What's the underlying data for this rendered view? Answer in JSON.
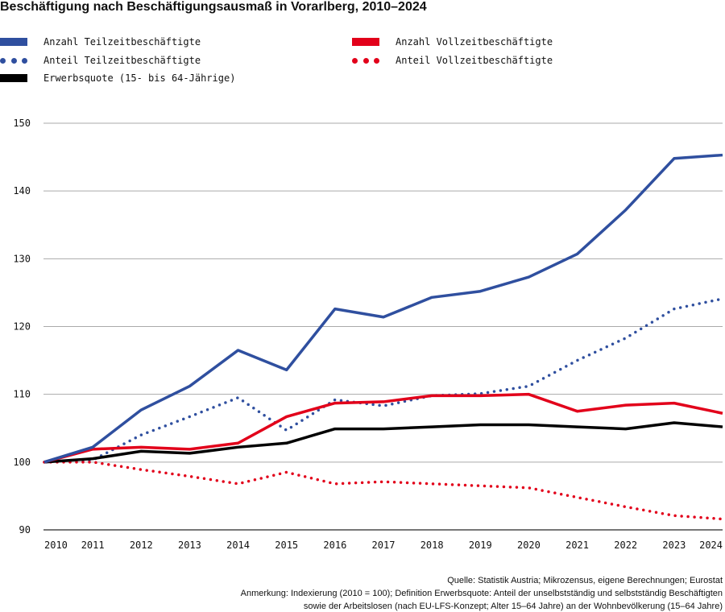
{
  "chart_data": {
    "type": "line",
    "title": "Beschäftigung nach Beschäftigungsausmaß in Vorarlberg, 2010–2024",
    "x": [
      2010,
      2011,
      2012,
      2013,
      2014,
      2015,
      2016,
      2017,
      2018,
      2019,
      2020,
      2021,
      2022,
      2023,
      2024
    ],
    "ylim": [
      90,
      150
    ],
    "yticks": [
      90,
      100,
      110,
      120,
      130,
      140,
      150
    ],
    "grid": true,
    "legend_position": "top",
    "series": [
      {
        "name": "Anzahl Teilzeitbeschäftigte",
        "color": "#2f4f9f",
        "style": "solid",
        "values": [
          100,
          102.2,
          107.7,
          111.2,
          116.5,
          113.6,
          122.6,
          121.4,
          124.3,
          125.2,
          127.3,
          130.7,
          137.2,
          144.8,
          145.3
        ]
      },
      {
        "name": "Anteil Teilzeitbeschäftigte",
        "color": "#2f4f9f",
        "style": "dotted",
        "values": [
          100,
          100.3,
          104.0,
          106.7,
          109.5,
          104.7,
          109.2,
          108.3,
          109.8,
          110.1,
          111.2,
          115.0,
          118.3,
          122.6,
          124.1
        ]
      },
      {
        "name": "Erwerbsquote (15- bis 64-Jährige)",
        "color": "#000000",
        "style": "solid",
        "values": [
          100,
          100.5,
          101.6,
          101.3,
          102.2,
          102.8,
          104.9,
          104.9,
          105.2,
          105.5,
          105.5,
          105.2,
          104.9,
          105.8,
          105.2
        ]
      },
      {
        "name": "Anzahl Vollzeitbeschäftigte",
        "color": "#e2001a",
        "style": "solid",
        "values": [
          100,
          101.9,
          102.2,
          101.9,
          102.8,
          106.7,
          108.7,
          108.9,
          109.8,
          109.8,
          110.0,
          107.5,
          108.4,
          108.7,
          107.2
        ]
      },
      {
        "name": "Anteil Vollzeitbeschäftigte",
        "color": "#e2001a",
        "style": "dotted",
        "values": [
          100,
          100.0,
          98.9,
          97.9,
          96.8,
          98.5,
          96.8,
          97.1,
          96.8,
          96.5,
          96.2,
          94.8,
          93.4,
          92.1,
          91.6
        ]
      }
    ]
  },
  "footer": {
    "source": "Quelle: Statistik Austria; Mikrozensus, eigene Berechnungen; Eurostat",
    "note1": "Anmerkung: Indexierung (2010 = 100); Definition Erwerbsquote: Anteil der unselbstständig und selbstständig Beschäftigten",
    "note2": "sowie der Arbeitslosen (nach EU-LFS-Konzept; Alter 15–64 Jahre) an der Wohnbevölkerung (15–64 Jahre)"
  }
}
